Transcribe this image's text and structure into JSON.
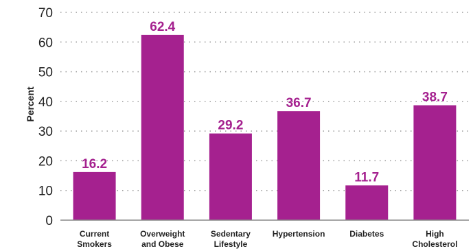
{
  "chart_data": {
    "type": "bar",
    "categories": [
      [
        "Current",
        "Smokers"
      ],
      [
        "Overweight",
        "and Obese"
      ],
      [
        "Sedentary",
        "Lifestyle"
      ],
      [
        "Hypertension"
      ],
      [
        "Diabetes"
      ],
      [
        "High",
        "Cholesterol"
      ]
    ],
    "values": [
      16.2,
      62.4,
      29.2,
      36.7,
      11.7,
      38.7
    ],
    "data_labels": [
      "16.2",
      "62.4",
      "29.2",
      "36.7",
      "11.7",
      "38.7"
    ],
    "ylabel": "Percent",
    "ylim": [
      0,
      70
    ],
    "yticks": [
      0,
      10,
      20,
      30,
      40,
      50,
      60,
      70
    ],
    "grid": true,
    "bar_color": "#a5218f",
    "label_color": "#a5218f"
  }
}
